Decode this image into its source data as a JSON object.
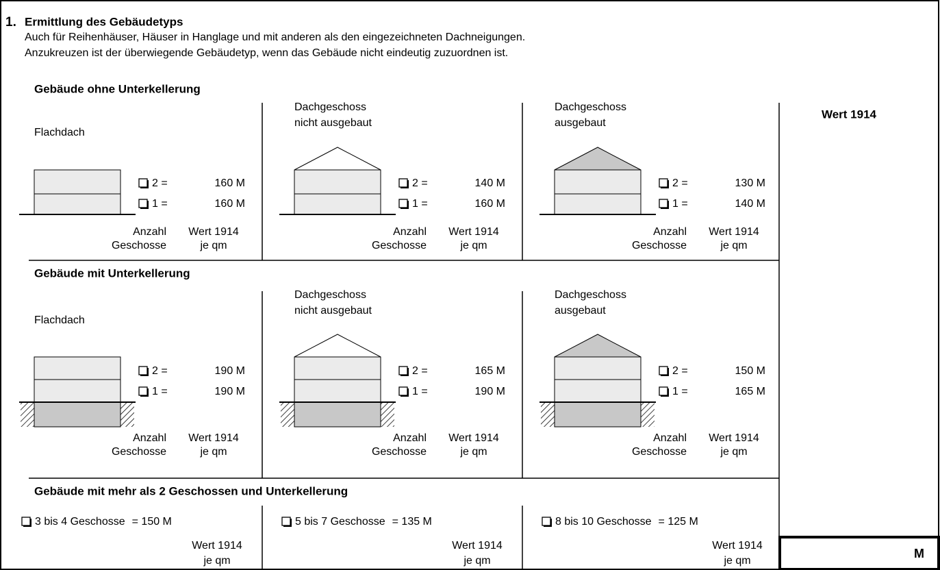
{
  "heading": {
    "number": "1.",
    "title": "Ermittlung des Gebäudetyps",
    "notes": [
      "Auch für Reihenhäuser, Häuser in Hanglage und mit anderen als den eingezeichneten Dachneigungen.",
      "Anzukreuzen ist der überwiegende Gebäudetyp, wenn das Gebäude nicht eindeutig zuzuordnen ist."
    ]
  },
  "legend": {
    "count": [
      "Anzahl",
      "Geschosse"
    ],
    "value": [
      "Wert 1914",
      "je qm"
    ]
  },
  "groups": [
    {
      "title": "Gebäude ohne Unterkellerung",
      "cells": [
        {
          "label": [
            "Flachdach"
          ],
          "options": [
            {
              "label": "2 =",
              "value": "160 M"
            },
            {
              "label": "1 =",
              "value": "160 M"
            }
          ]
        },
        {
          "label": [
            "Dachgeschoss",
            "nicht ausgebaut"
          ],
          "options": [
            {
              "label": "2 =",
              "value": "140 M"
            },
            {
              "label": "1 =",
              "value": "160 M"
            }
          ]
        },
        {
          "label": [
            "Dachgeschoss",
            "ausgebaut"
          ],
          "options": [
            {
              "label": "2 =",
              "value": "130 M"
            },
            {
              "label": "1 =",
              "value": "140 M"
            }
          ]
        }
      ]
    },
    {
      "title": "Gebäude mit Unterkellerung",
      "cells": [
        {
          "label": [
            "Flachdach"
          ],
          "options": [
            {
              "label": "2 =",
              "value": "190 M"
            },
            {
              "label": "1 =",
              "value": "190 M"
            }
          ]
        },
        {
          "label": [
            "Dachgeschoss",
            "nicht ausgebaut"
          ],
          "options": [
            {
              "label": "2 =",
              "value": "165 M"
            },
            {
              "label": "1 =",
              "value": "190 M"
            }
          ]
        },
        {
          "label": [
            "Dachgeschoss",
            "ausgebaut"
          ],
          "options": [
            {
              "label": "2 =",
              "value": "150 M"
            },
            {
              "label": "1 =",
              "value": "165 M"
            }
          ]
        }
      ]
    },
    {
      "title": "Gebäude mit mehr als 2 Geschossen und Unterkellerung",
      "items": [
        {
          "label": "3 bis 4 Geschosse",
          "value": "= 150 M"
        },
        {
          "label": "5 bis 7 Geschosse",
          "value": "= 135 M"
        },
        {
          "label": "8 bis 10 Geschosse",
          "value": "= 125 M"
        }
      ]
    }
  ],
  "side": {
    "header": "Wert 1914",
    "unit": "M"
  }
}
